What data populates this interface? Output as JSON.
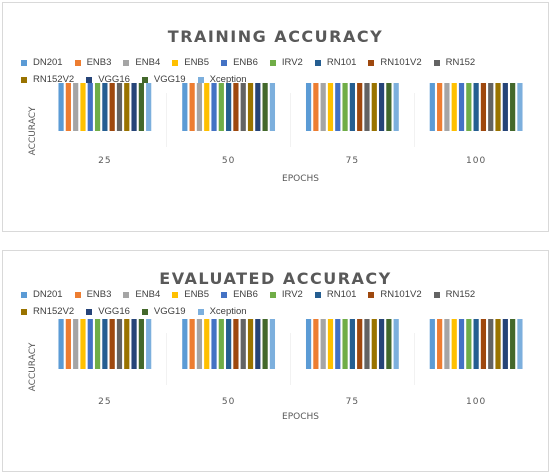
{
  "chart_data": [
    {
      "type": "bar",
      "title": "TRAINING ACCURACY",
      "xlabel": "EPOCHS",
      "ylabel": "ACCURACY",
      "ylim": [
        0,
        1
      ],
      "grid": false,
      "legend_position": "top",
      "categories": [
        "25",
        "50",
        "75",
        "100"
      ],
      "series": [
        {
          "name": "DN201",
          "color": "#5b9bd5",
          "values": [
            0.89,
            0.95,
            0.96,
            0.97
          ]
        },
        {
          "name": "ENB3",
          "color": "#ed7d31",
          "values": [
            0.98,
            0.99,
            0.99,
            0.99
          ]
        },
        {
          "name": "ENB4",
          "color": "#a5a5a5",
          "values": [
            0.85,
            0.9,
            0.93,
            0.95
          ]
        },
        {
          "name": "ENB5",
          "color": "#ffc000",
          "values": [
            0.88,
            0.94,
            0.96,
            0.97
          ]
        },
        {
          "name": "ENB6",
          "color": "#4472c4",
          "values": [
            0.88,
            0.95,
            0.97,
            0.96
          ]
        },
        {
          "name": "IRV2",
          "color": "#70ad47",
          "values": [
            0.94,
            0.96,
            0.95,
            0.98
          ]
        },
        {
          "name": "RN101",
          "color": "#255e91",
          "values": [
            0.86,
            0.92,
            0.93,
            0.93
          ]
        },
        {
          "name": "RN101V2",
          "color": "#9e480e",
          "values": [
            0.82,
            0.88,
            0.91,
            0.93
          ]
        },
        {
          "name": "RN152",
          "color": "#636363",
          "values": [
            0.86,
            0.92,
            0.94,
            0.96
          ]
        },
        {
          "name": "RN152V2",
          "color": "#997300",
          "values": [
            0.75,
            0.83,
            0.86,
            0.88
          ]
        },
        {
          "name": "VGG16",
          "color": "#264478",
          "values": [
            0.87,
            0.94,
            0.95,
            0.96
          ]
        },
        {
          "name": "VGG19",
          "color": "#43682b",
          "values": [
            0.85,
            0.91,
            0.94,
            0.95
          ]
        },
        {
          "name": "Xception",
          "color": "#7cafdd",
          "values": [
            0.95,
            0.97,
            0.98,
            0.98
          ]
        }
      ]
    },
    {
      "type": "bar",
      "title": "EVALUATED ACCURACY",
      "xlabel": "EPOCHS",
      "ylabel": "ACCURACY",
      "ylim": [
        0,
        1
      ],
      "grid": false,
      "legend_position": "top",
      "categories": [
        "25",
        "50",
        "75",
        "100"
      ],
      "series": [
        {
          "name": "DN201",
          "color": "#5b9bd5",
          "values": [
            0.91,
            0.94,
            0.96,
            0.97
          ]
        },
        {
          "name": "ENB3",
          "color": "#ed7d31",
          "values": [
            0.98,
            0.98,
            0.99,
            0.99
          ]
        },
        {
          "name": "ENB4",
          "color": "#a5a5a5",
          "values": [
            0.87,
            0.91,
            0.87,
            0.93
          ]
        },
        {
          "name": "ENB5",
          "color": "#ffc000",
          "values": [
            0.91,
            0.94,
            0.91,
            0.97
          ]
        },
        {
          "name": "ENB6",
          "color": "#4472c4",
          "values": [
            0.84,
            0.95,
            0.96,
            0.96
          ]
        },
        {
          "name": "IRV2",
          "color": "#70ad47",
          "values": [
            0.92,
            0.95,
            0.96,
            0.96
          ]
        },
        {
          "name": "RN101",
          "color": "#255e91",
          "values": [
            0.87,
            0.91,
            0.94,
            0.89
          ]
        },
        {
          "name": "RN101V2",
          "color": "#9e480e",
          "values": [
            0.81,
            0.88,
            0.9,
            0.91
          ]
        },
        {
          "name": "RN152",
          "color": "#636363",
          "values": [
            0.85,
            0.91,
            0.91,
            0.93
          ]
        },
        {
          "name": "RN152V2",
          "color": "#997300",
          "values": [
            0.78,
            0.8,
            0.84,
            0.87
          ]
        },
        {
          "name": "VGG16",
          "color": "#264478",
          "values": [
            0.88,
            0.94,
            0.96,
            0.96
          ]
        },
        {
          "name": "VGG19",
          "color": "#43682b",
          "values": [
            0.86,
            0.9,
            0.93,
            0.96
          ]
        },
        {
          "name": "Xception",
          "color": "#7cafdd",
          "values": [
            0.92,
            0.96,
            0.97,
            0.97
          ]
        }
      ]
    }
  ]
}
